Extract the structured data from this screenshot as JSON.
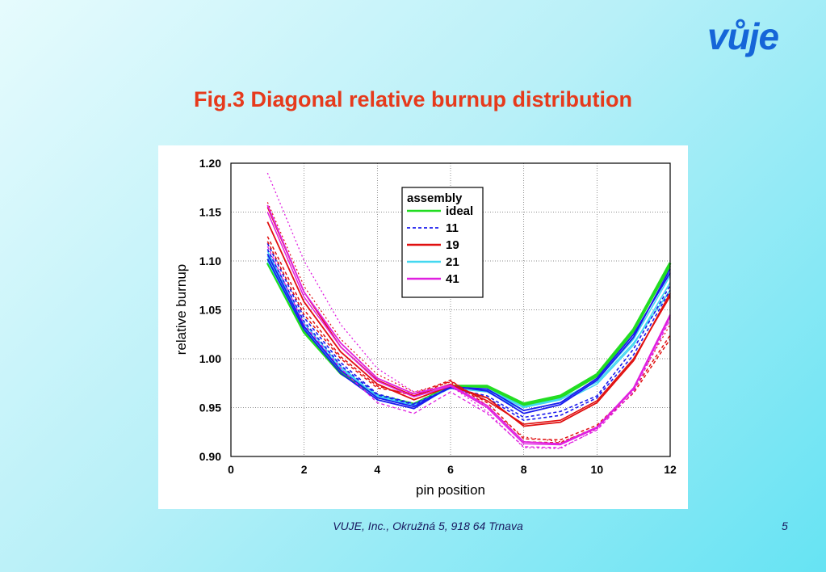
{
  "slide": {
    "logo": "vůje",
    "title": "Fig.3 Diagonal relative burnup distribution",
    "footer": "VUJE, Inc., Okružná 5, 918 64 Trnava",
    "page_number": "5"
  },
  "chart_data": {
    "type": "line",
    "title": "",
    "xlabel": "pin position",
    "ylabel": "relative burnup",
    "xlim": [
      0,
      12
    ],
    "ylim": [
      0.9,
      1.2
    ],
    "x_ticks": [
      "0",
      "2",
      "4",
      "6",
      "8",
      "10",
      "12"
    ],
    "y_ticks": [
      "0.90",
      "0.95",
      "1.00",
      "1.05",
      "1.10",
      "1.15",
      "1.20"
    ],
    "grid": true,
    "legend_title": "assembly",
    "legend_position": "top-center",
    "colors": {
      "ideal": "#22dd22",
      "11": "#1a1aee",
      "19": "#e01010",
      "21": "#44d8f0",
      "41": "#e020e0"
    },
    "legend": [
      {
        "label": "ideal",
        "color": "#22dd22",
        "style": "solid"
      },
      {
        "label": "11",
        "color": "#1a1aee",
        "style": "dashed"
      },
      {
        "label": "19",
        "color": "#e01010",
        "style": "solid"
      },
      {
        "label": "21",
        "color": "#44d8f0",
        "style": "solid"
      },
      {
        "label": "41",
        "color": "#e020e0",
        "style": "solid"
      }
    ],
    "x": [
      1,
      2,
      3,
      4,
      5,
      6,
      7,
      8,
      9,
      10,
      11,
      12
    ],
    "series": [
      {
        "name": "ideal",
        "color": "#22dd22",
        "dash": "",
        "width": 3.2,
        "values": [
          1.098,
          1.027,
          0.985,
          0.962,
          0.953,
          0.972,
          0.972,
          0.954,
          0.962,
          0.984,
          1.03,
          1.098
        ]
      },
      {
        "color": "#22dd22",
        "dash": "",
        "width": 2.2,
        "values": [
          1.102,
          1.03,
          0.987,
          0.963,
          0.954,
          0.972,
          0.971,
          0.952,
          0.96,
          0.982,
          1.028,
          1.095
        ]
      },
      {
        "color": "#44d8f0",
        "dash": "",
        "width": 1.6,
        "values": [
          1.105,
          1.032,
          0.99,
          0.962,
          0.952,
          0.971,
          0.968,
          0.95,
          0.958,
          0.978,
          1.02,
          1.085
        ]
      },
      {
        "color": "#44d8f0",
        "dash": "",
        "width": 1.6,
        "values": [
          1.11,
          1.036,
          0.992,
          0.961,
          0.951,
          0.97,
          0.966,
          0.947,
          0.955,
          0.974,
          1.014,
          1.078
        ]
      },
      {
        "color": "#44d8f0",
        "dash": "",
        "width": 1.6,
        "values": [
          1.1,
          1.03,
          0.988,
          0.963,
          0.953,
          0.971,
          0.969,
          0.951,
          0.959,
          0.976,
          1.016,
          1.07
        ]
      },
      {
        "name": "11",
        "color": "#1a1aee",
        "dash": "",
        "width": 1.8,
        "values": [
          1.102,
          1.03,
          0.985,
          0.958,
          0.949,
          0.972,
          0.967,
          0.944,
          0.953,
          0.978,
          1.022,
          1.092
        ]
      },
      {
        "color": "#1a1aee",
        "dash": "",
        "width": 1.8,
        "values": [
          1.107,
          1.033,
          0.988,
          0.96,
          0.951,
          0.971,
          0.969,
          0.947,
          0.955,
          0.98,
          1.025,
          1.088
        ]
      },
      {
        "color": "#1a1aee",
        "dash": "4,3",
        "width": 1.6,
        "values": [
          1.112,
          1.038,
          0.993,
          0.963,
          0.953,
          0.97,
          0.962,
          0.94,
          0.946,
          0.962,
          1.01,
          1.075
        ]
      },
      {
        "color": "#1a1aee",
        "dash": "4,3",
        "width": 1.6,
        "values": [
          1.118,
          1.042,
          0.996,
          0.964,
          0.954,
          0.97,
          0.96,
          0.937,
          0.942,
          0.96,
          1.004,
          1.07
        ]
      },
      {
        "name": "19",
        "color": "#e01010",
        "dash": "",
        "width": 1.8,
        "values": [
          1.14,
          1.058,
          1.007,
          0.974,
          0.958,
          0.972,
          0.96,
          0.931,
          0.935,
          0.955,
          0.998,
          1.067
        ]
      },
      {
        "color": "#e01010",
        "dash": "",
        "width": 1.6,
        "values": [
          1.155,
          1.068,
          1.012,
          0.978,
          0.962,
          0.974,
          0.957,
          0.933,
          0.937,
          0.957,
          1.0,
          1.064
        ]
      },
      {
        "color": "#e01010",
        "dash": "4,3",
        "width": 1.5,
        "values": [
          1.125,
          1.05,
          1.002,
          0.972,
          0.962,
          0.977,
          0.955,
          0.918,
          0.917,
          0.932,
          0.968,
          1.024
        ]
      },
      {
        "color": "#e01010",
        "dash": "4,3",
        "width": 1.5,
        "values": [
          1.12,
          1.045,
          1.0,
          0.97,
          0.964,
          0.978,
          0.952,
          0.915,
          0.914,
          0.93,
          0.965,
          1.02
        ]
      },
      {
        "color": "#e01010",
        "dash": "2,3",
        "width": 1.2,
        "values": [
          1.16,
          1.074,
          1.02,
          0.984,
          0.966,
          0.976,
          0.95,
          0.92,
          0.915,
          0.928,
          0.97,
          1.035
        ]
      },
      {
        "name": "41",
        "color": "#e020e0",
        "dash": "",
        "width": 1.8,
        "values": [
          1.157,
          1.068,
          1.016,
          0.98,
          0.964,
          0.973,
          0.952,
          0.915,
          0.913,
          0.93,
          0.97,
          1.045
        ]
      },
      {
        "color": "#e020e0",
        "dash": "",
        "width": 1.5,
        "values": [
          1.15,
          1.063,
          1.012,
          0.977,
          0.961,
          0.972,
          0.95,
          0.913,
          0.912,
          0.929,
          0.969,
          1.043
        ]
      },
      {
        "color": "#e020e0",
        "dash": "2,3",
        "width": 1.3,
        "values": [
          1.19,
          1.1,
          1.035,
          0.99,
          0.966,
          0.972,
          0.946,
          0.909,
          0.908,
          0.928,
          0.968,
          1.042
        ]
      },
      {
        "color": "#e020e0",
        "dash": "4,3",
        "width": 1.3,
        "values": [
          1.115,
          1.035,
          0.99,
          0.955,
          0.944,
          0.966,
          0.944,
          0.91,
          0.909,
          0.927,
          0.966,
          1.04
        ]
      }
    ]
  }
}
